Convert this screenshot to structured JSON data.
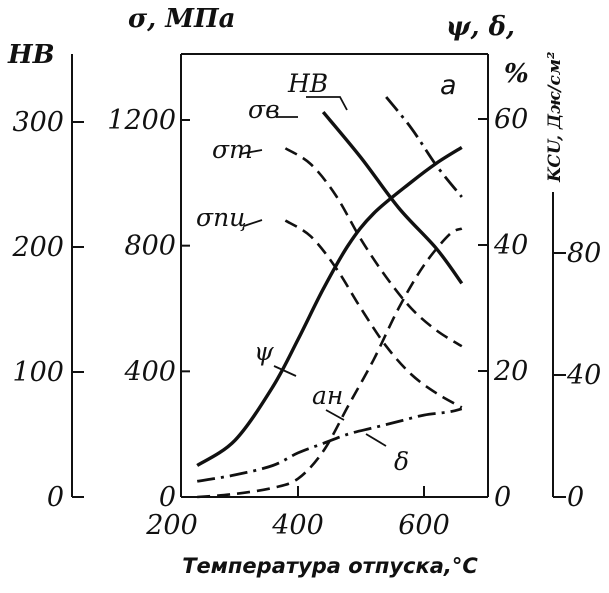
{
  "chart_data": {
    "type": "line",
    "panel_label": "а",
    "xlabel": "Температура отпуска,°С",
    "x_ticks": [
      "200",
      "400",
      "600"
    ],
    "xlim": [
      200,
      700
    ],
    "axes": {
      "hb": {
        "label": "HB",
        "ticks": [
          "0",
          "100",
          "200",
          "300"
        ],
        "range": [
          0,
          375
        ]
      },
      "stress": {
        "label": "σ, МПа",
        "ticks": [
          "0",
          "400",
          "800",
          "1200"
        ],
        "range": [
          0,
          1250
        ]
      },
      "percent": {
        "label": "ψ, δ,",
        "unit": "%",
        "ticks": [
          "0",
          "20",
          "40",
          "60"
        ],
        "range": [
          0,
          60
        ]
      },
      "kcu": {
        "label": "KCU, Дж/см²",
        "ticks": [
          "0",
          "40",
          "80"
        ],
        "range": [
          0,
          95
        ]
      }
    },
    "series": [
      {
        "name": "HB",
        "axis": "hb",
        "style": "dashdot",
        "points": [
          [
            540,
            320
          ],
          [
            580,
            295
          ],
          [
            620,
            265
          ],
          [
            660,
            240
          ]
        ]
      },
      {
        "name": "σв",
        "axis": "stress",
        "style": "solid",
        "points": [
          [
            440,
            1225
          ],
          [
            500,
            1080
          ],
          [
            560,
            920
          ],
          [
            620,
            790
          ],
          [
            660,
            680
          ]
        ]
      },
      {
        "name": "σт",
        "axis": "stress",
        "style": "dashed",
        "points": [
          [
            380,
            1110
          ],
          [
            420,
            1060
          ],
          [
            460,
            960
          ],
          [
            500,
            820
          ],
          [
            540,
            700
          ],
          [
            580,
            600
          ],
          [
            620,
            530
          ],
          [
            660,
            480
          ]
        ]
      },
      {
        "name": "σпц",
        "axis": "stress",
        "style": "dashed",
        "points": [
          [
            380,
            880
          ],
          [
            420,
            830
          ],
          [
            460,
            730
          ],
          [
            500,
            600
          ],
          [
            540,
            480
          ],
          [
            580,
            390
          ],
          [
            620,
            330
          ],
          [
            660,
            285
          ]
        ]
      },
      {
        "name": "ψ",
        "axis": "percent",
        "style": "solid",
        "points": [
          [
            240,
            5
          ],
          [
            300,
            9
          ],
          [
            360,
            17.5
          ],
          [
            400,
            25
          ],
          [
            440,
            33
          ],
          [
            480,
            40
          ],
          [
            520,
            45
          ],
          [
            580,
            50
          ],
          [
            620,
            53
          ],
          [
            660,
            55.5
          ]
        ]
      },
      {
        "name": "δ",
        "axis": "percent",
        "style": "dashdot",
        "points": [
          [
            240,
            2.5
          ],
          [
            300,
            3.5
          ],
          [
            360,
            5
          ],
          [
            400,
            7
          ],
          [
            440,
            8.5
          ],
          [
            480,
            10
          ],
          [
            520,
            11
          ],
          [
            560,
            12
          ],
          [
            600,
            13
          ],
          [
            640,
            13.5
          ],
          [
            660,
            14
          ]
        ]
      },
      {
        "name": "aн",
        "axis": "kcu",
        "style": "dashed",
        "points": [
          [
            240,
            0
          ],
          [
            300,
            1
          ],
          [
            360,
            3
          ],
          [
            400,
            6
          ],
          [
            440,
            15
          ],
          [
            480,
            30
          ],
          [
            520,
            45
          ],
          [
            560,
            62
          ],
          [
            600,
            76
          ],
          [
            640,
            86
          ],
          [
            660,
            88
          ]
        ]
      }
    ]
  }
}
